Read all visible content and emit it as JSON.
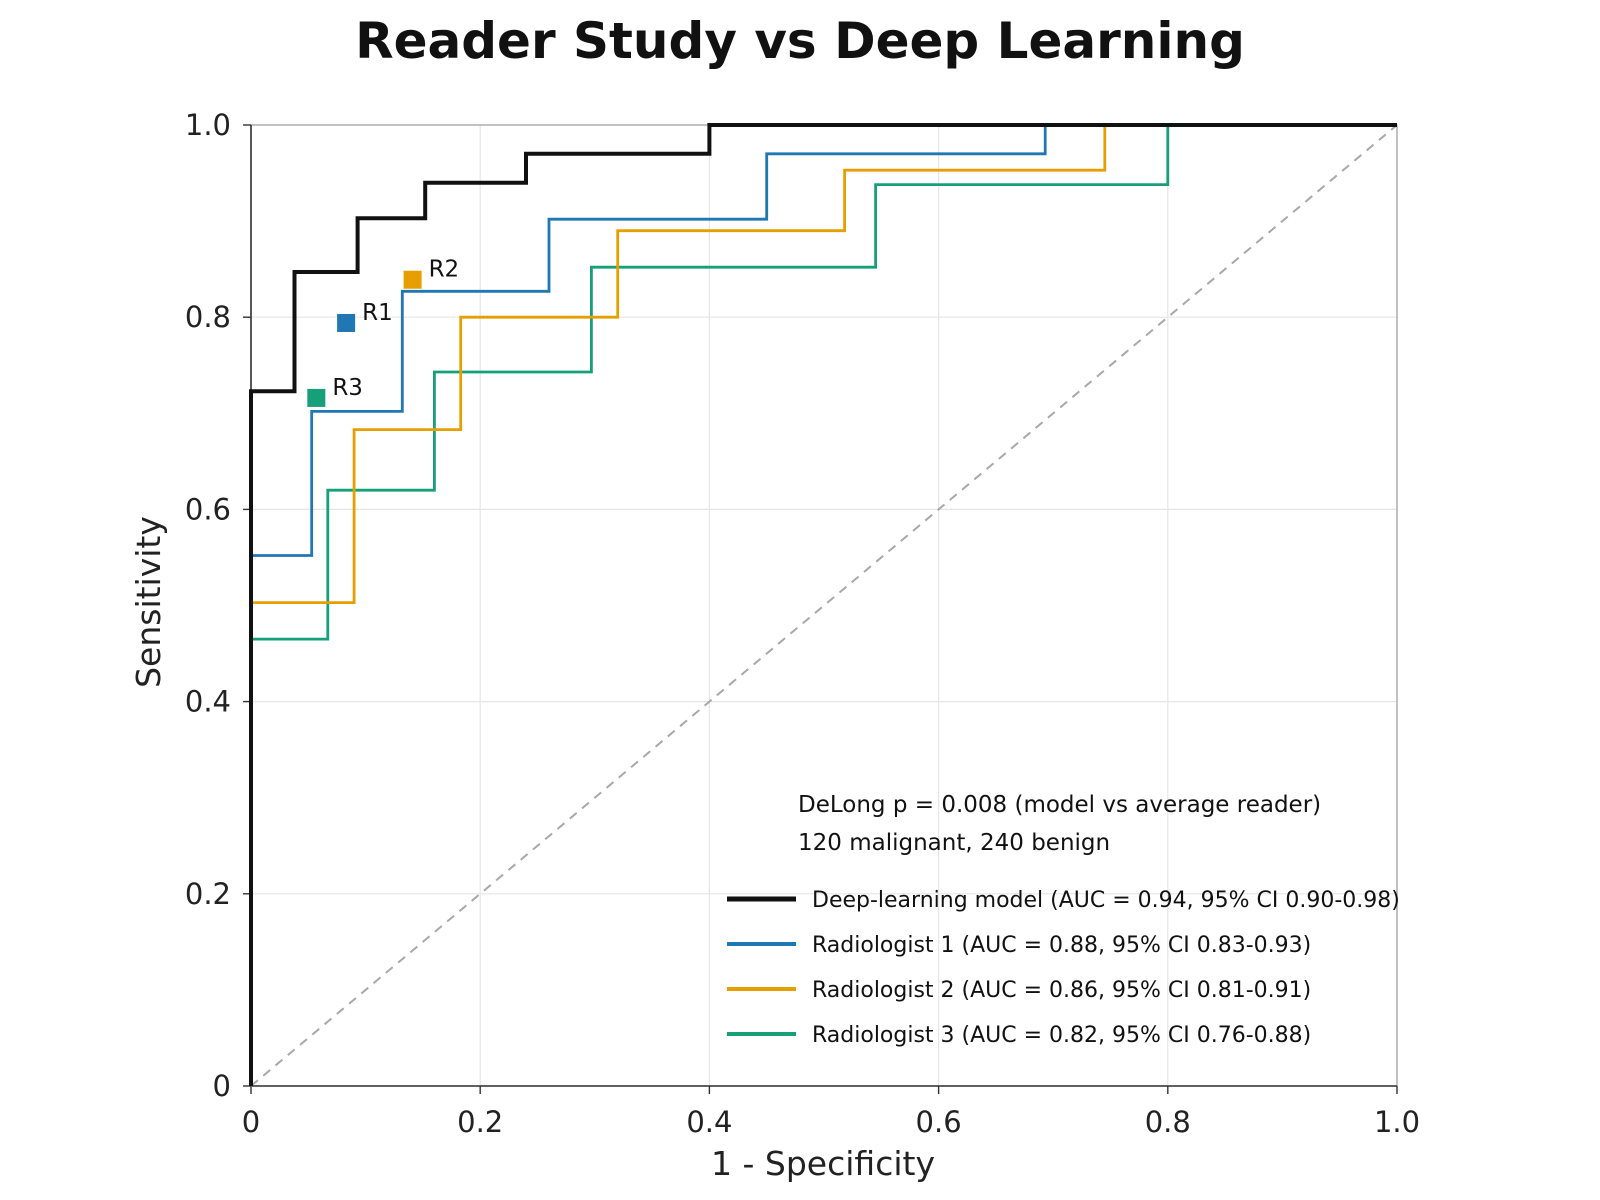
{
  "chart_data": {
    "type": "line",
    "title": "Reader Study vs Deep Learning",
    "xlabel": "1 - Specificity",
    "ylabel": "Sensitivity",
    "xlim": [
      0,
      1
    ],
    "ylim": [
      0,
      1
    ],
    "x_ticks": [
      0,
      0.2,
      0.4,
      0.6,
      0.8,
      1.0
    ],
    "x_tick_labels": [
      "0",
      "0.2",
      "0.4",
      "0.6",
      "0.8",
      "1.0"
    ],
    "y_ticks": [
      0,
      0.2,
      0.4,
      0.6,
      0.8,
      1.0
    ],
    "y_tick_labels": [
      "0",
      "0.2",
      "0.4",
      "0.6",
      "0.8",
      "1.0"
    ],
    "grid": true,
    "legend_position": "bottom-right",
    "annotations": [
      "DeLong p = 0.008 (model vs average reader)",
      "120 malignant, 240 benign"
    ],
    "reference_line": {
      "x": [
        0,
        1
      ],
      "y": [
        0,
        1
      ],
      "color": "#a8a8a8",
      "style": "dashed"
    },
    "series": [
      {
        "name": "Deep-learning model (AUC = 0.94, 95% CI 0.90-0.98)",
        "color": "#111111",
        "x": [
          0,
          0,
          0,
          0.038,
          0.038,
          0.093,
          0.093,
          0.152,
          0.152,
          0.24,
          0.24,
          0.4,
          0.4,
          1.0
        ],
        "y": [
          0,
          0.55,
          0.723,
          0.723,
          0.847,
          0.847,
          0.903,
          0.903,
          0.94,
          0.94,
          0.97,
          0.97,
          1.0,
          1.0
        ]
      },
      {
        "name": "Radiologist 1 (AUC = 0.88, 95% CI 0.83-0.93)",
        "color": "#1f77b4",
        "x": [
          0,
          0,
          0.053,
          0.053,
          0.132,
          0.132,
          0.26,
          0.26,
          0.45,
          0.45,
          0.693,
          0.693,
          1.0
        ],
        "y": [
          0,
          0.552,
          0.552,
          0.702,
          0.702,
          0.827,
          0.827,
          0.902,
          0.902,
          0.97,
          0.97,
          1.0,
          1.0
        ]
      },
      {
        "name": "Radiologist 2 (AUC = 0.86, 95% CI 0.81-0.91)",
        "color": "#e69f00",
        "x": [
          0,
          0,
          0.09,
          0.09,
          0.183,
          0.183,
          0.32,
          0.32,
          0.518,
          0.518,
          0.745,
          0.745,
          1.0
        ],
        "y": [
          0,
          0.503,
          0.503,
          0.683,
          0.683,
          0.8,
          0.8,
          0.89,
          0.89,
          0.953,
          0.953,
          1.0,
          1.0
        ]
      },
      {
        "name": "Radiologist 3 (AUC = 0.82, 95% CI 0.76-0.88)",
        "color": "#16a07a",
        "x": [
          0,
          0,
          0.067,
          0.067,
          0.16,
          0.16,
          0.297,
          0.297,
          0.545,
          0.545,
          0.8,
          0.8,
          1.0
        ],
        "y": [
          0,
          0.465,
          0.465,
          0.62,
          0.62,
          0.743,
          0.743,
          0.852,
          0.852,
          0.938,
          0.938,
          1.0,
          1.0
        ]
      }
    ],
    "reader_points": [
      {
        "label": "R1",
        "x": 0.083,
        "y": 0.794,
        "color": "#1f77b4"
      },
      {
        "label": "R2",
        "x": 0.141,
        "y": 0.839,
        "color": "#e69f00"
      },
      {
        "label": "R3",
        "x": 0.057,
        "y": 0.716,
        "color": "#16a07a"
      }
    ]
  }
}
